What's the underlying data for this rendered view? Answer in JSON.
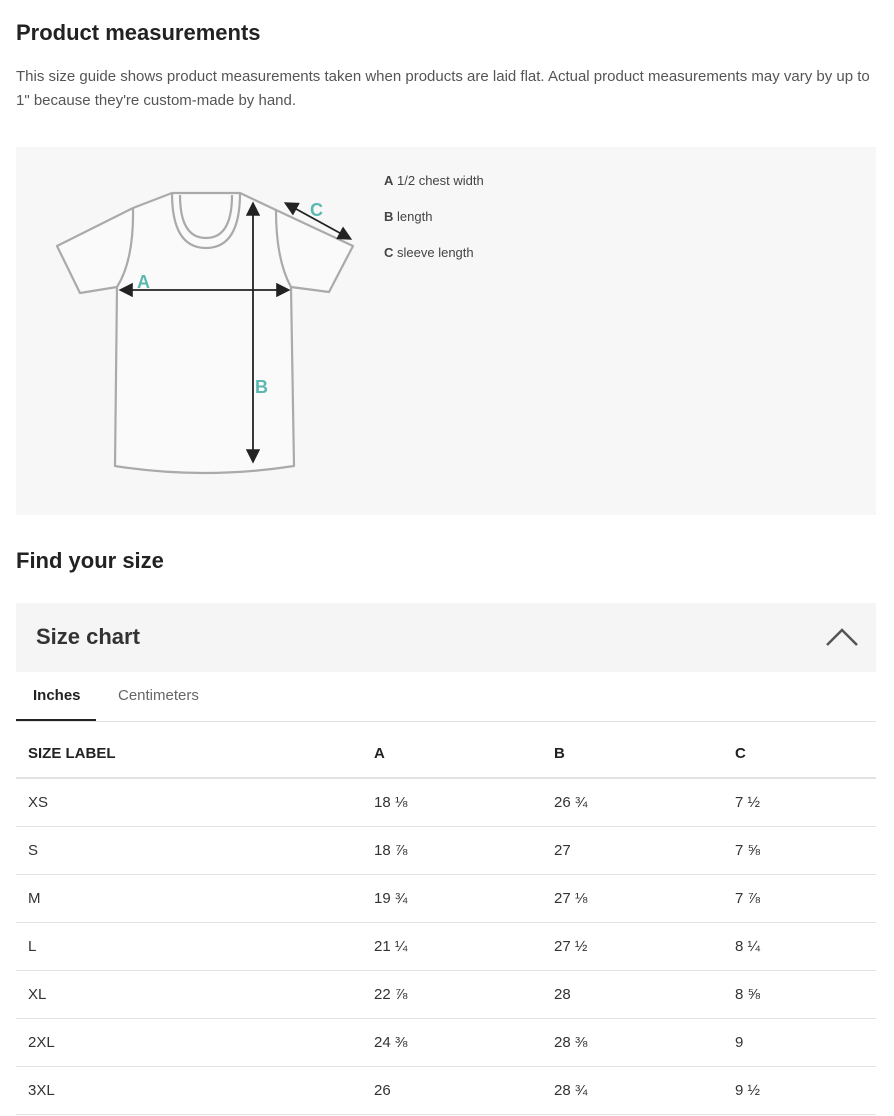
{
  "measurements": {
    "title": "Product measurements",
    "description": "This size guide shows product measurements taken when products are laid flat. Actual product measurements may vary by up to 1\" because they're custom-made by hand.",
    "diagram_labels": {
      "a": "A",
      "b": "B",
      "c": "C"
    },
    "legend": [
      {
        "key": "A",
        "label": "1/2 chest width"
      },
      {
        "key": "B",
        "label": "length"
      },
      {
        "key": "C",
        "label": "sleeve length"
      }
    ],
    "accent_color": "#5bb8b0"
  },
  "find_size": {
    "title": "Find your size"
  },
  "size_chart": {
    "title": "Size chart",
    "expanded": true,
    "tabs": [
      {
        "label": "Inches",
        "active": true
      },
      {
        "label": "Centimeters",
        "active": false
      }
    ],
    "headers": [
      "SIZE LABEL",
      "A",
      "B",
      "C"
    ],
    "rows": [
      [
        "XS",
        "18 ⅛",
        "26 ¾",
        "7 ½"
      ],
      [
        "S",
        "18 ⅞",
        "27",
        "7 ⅝"
      ],
      [
        "M",
        "19 ¾",
        "27 ⅛",
        "7 ⅞"
      ],
      [
        "L",
        "21 ¼",
        "27 ½",
        "8 ¼"
      ],
      [
        "XL",
        "22 ⅞",
        "28",
        "8 ⅝"
      ],
      [
        "2XL",
        "24 ⅜",
        "28 ⅜",
        "9"
      ],
      [
        "3XL",
        "26",
        "28 ¾",
        "9 ½"
      ]
    ]
  }
}
